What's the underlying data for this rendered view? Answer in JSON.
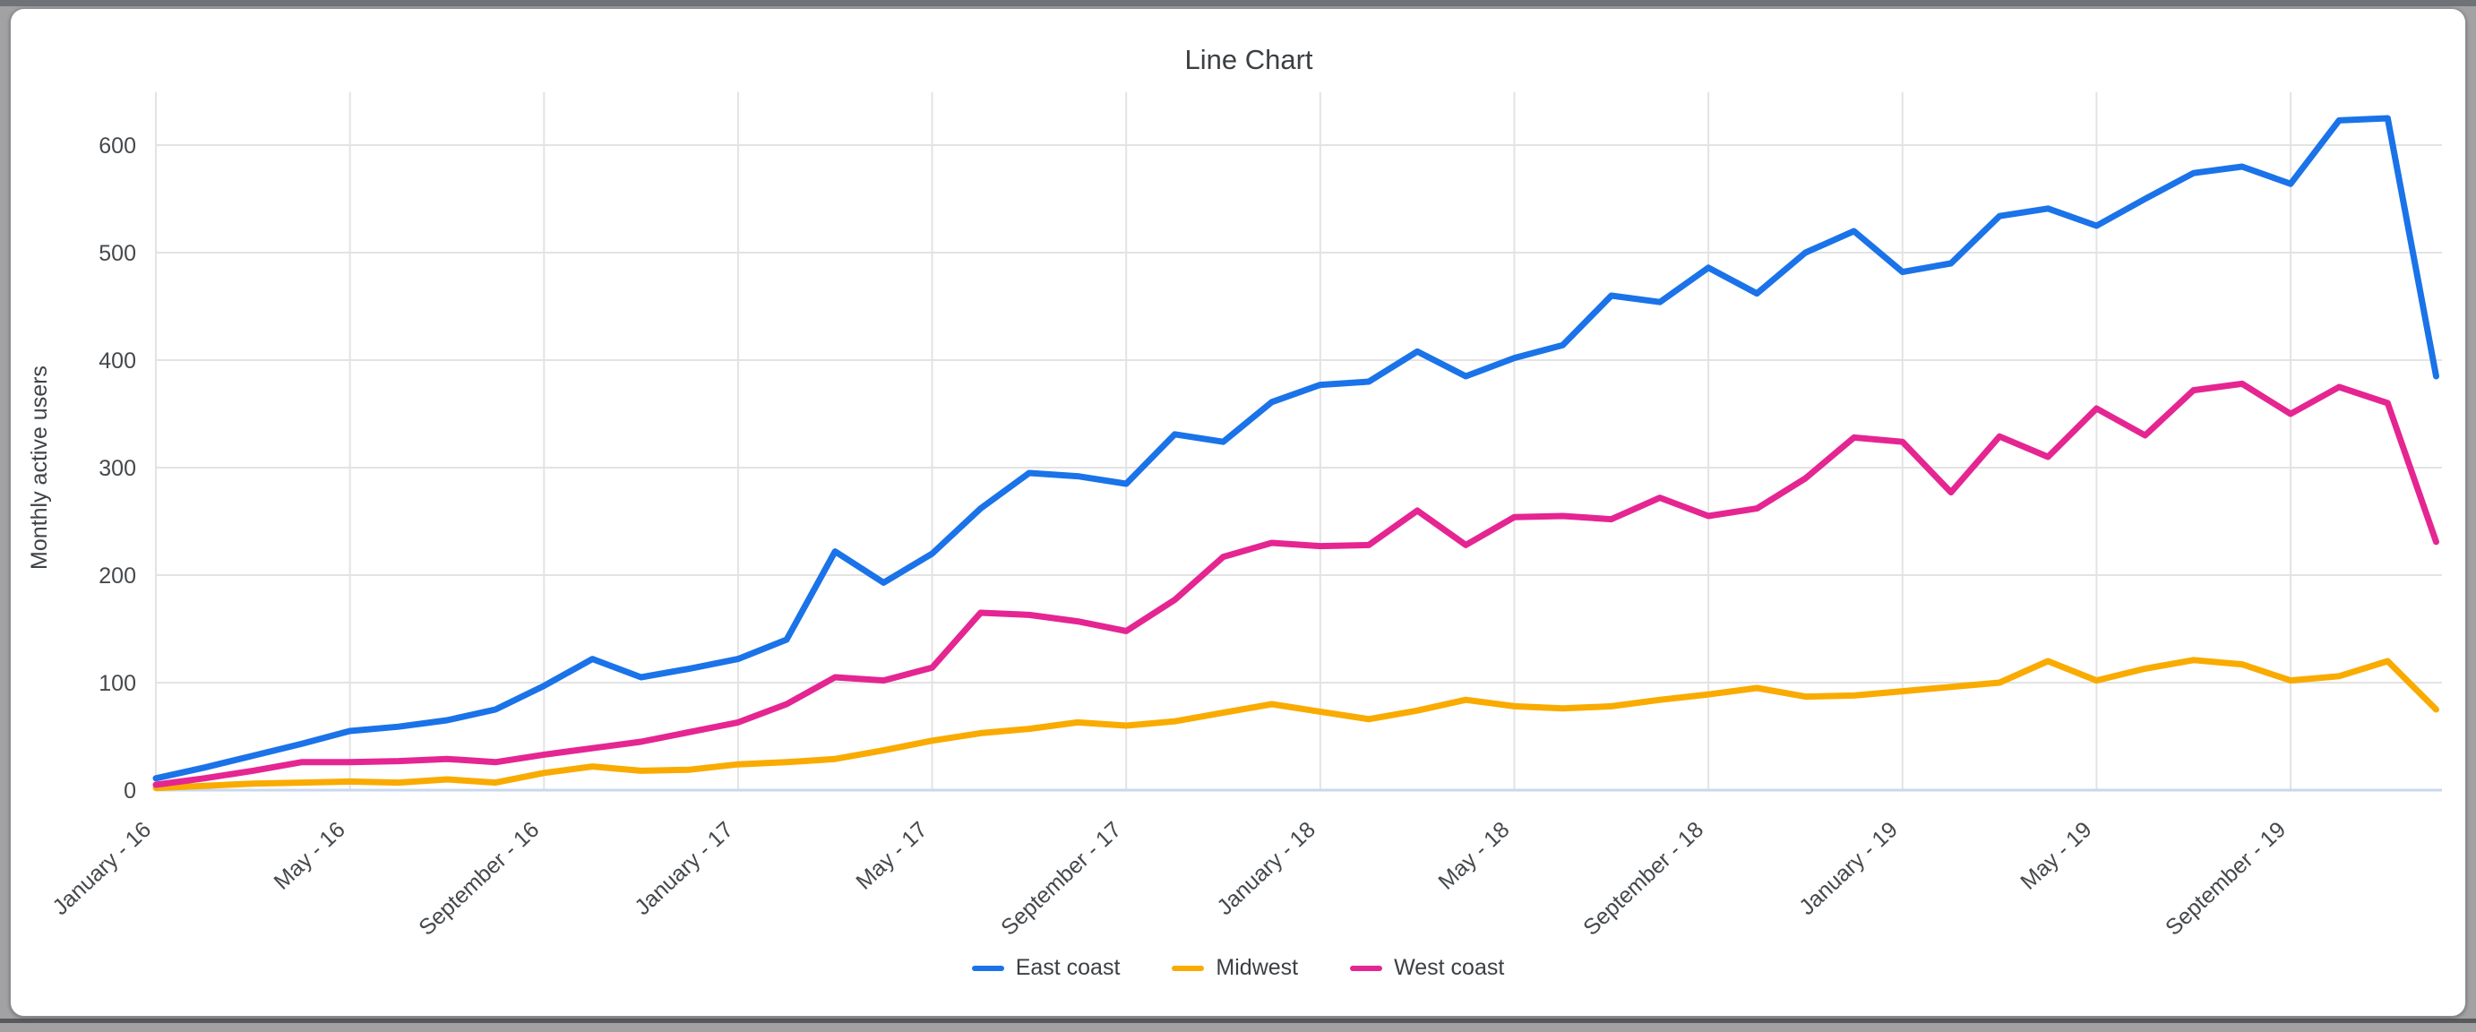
{
  "chart_data": {
    "type": "line",
    "title": "Line Chart",
    "xlabel": "",
    "ylabel": "Monthly active users",
    "ylim": [
      0,
      650
    ],
    "grid": true,
    "legend_position": "bottom",
    "y_tick_labels": [
      "0",
      "100",
      "200",
      "300",
      "400",
      "500",
      "600"
    ],
    "y_ticks": [
      0,
      100,
      200,
      300,
      400,
      500,
      600
    ],
    "x_tick_labels": [
      "January - 16",
      "May - 16",
      "September - 16",
      "January - 17",
      "May - 17",
      "September - 17",
      "January - 18",
      "May - 18",
      "September - 18",
      "January - 19",
      "May - 19",
      "September - 19"
    ],
    "x_tick_month_indices": [
      0,
      4,
      8,
      12,
      16,
      20,
      24,
      28,
      32,
      36,
      40,
      44
    ],
    "categories": [
      "Jan 2016",
      "Feb 2016",
      "Mar 2016",
      "Apr 2016",
      "May 2016",
      "Jun 2016",
      "Jul 2016",
      "Aug 2016",
      "Sep 2016",
      "Oct 2016",
      "Nov 2016",
      "Dec 2016",
      "Jan 2017",
      "Feb 2017",
      "Mar 2017",
      "Apr 2017",
      "May 2017",
      "Jun 2017",
      "Jul 2017",
      "Aug 2017",
      "Sep 2017",
      "Oct 2017",
      "Nov 2017",
      "Dec 2017",
      "Jan 2018",
      "Feb 2018",
      "Mar 2018",
      "Apr 2018",
      "May 2018",
      "Jun 2018",
      "Jul 2018",
      "Aug 2018",
      "Sep 2018",
      "Oct 2018",
      "Nov 2018",
      "Dec 2018",
      "Jan 2019",
      "Feb 2019",
      "Mar 2019",
      "Apr 2019",
      "May 2019",
      "Jun 2019",
      "Jul 2019",
      "Aug 2019",
      "Sep 2019",
      "Oct 2019",
      "Nov 2019",
      "Dec 2019"
    ],
    "series": [
      {
        "name": "East coast",
        "color": "#1a73e8",
        "values": [
          11,
          21,
          32,
          43,
          55,
          59,
          65,
          75,
          97,
          122,
          105,
          113,
          122,
          140,
          222,
          193,
          220,
          262,
          295,
          292,
          285,
          331,
          324,
          361,
          377,
          380,
          408,
          385,
          402,
          414,
          460,
          454,
          486,
          462,
          500,
          520,
          482,
          490,
          534,
          541,
          525,
          550,
          574,
          580,
          564,
          623,
          625,
          385
        ]
      },
      {
        "name": "Midwest",
        "color": "#f9ab00",
        "values": [
          2,
          4,
          6,
          7,
          8,
          7,
          10,
          7,
          16,
          22,
          18,
          19,
          24,
          26,
          29,
          37,
          46,
          53,
          57,
          63,
          60,
          64,
          72,
          80,
          73,
          66,
          74,
          84,
          78,
          76,
          78,
          84,
          89,
          95,
          87,
          88,
          92,
          96,
          100,
          120,
          102,
          113,
          121,
          117,
          102,
          106,
          120,
          75
        ]
      },
      {
        "name": "West coast",
        "color": "#e52592",
        "values": [
          5,
          11,
          18,
          26,
          26,
          27,
          29,
          26,
          33,
          39,
          45,
          54,
          63,
          80,
          105,
          102,
          114,
          165,
          163,
          157,
          148,
          177,
          217,
          230,
          227,
          228,
          260,
          228,
          254,
          255,
          252,
          272,
          255,
          262,
          290,
          328,
          324,
          277,
          329,
          310,
          355,
          330,
          372,
          378,
          350,
          375,
          360,
          231
        ]
      }
    ],
    "style": {
      "grid_color": "#e3e3e3",
      "baseline_color": "#c9d7f0",
      "title_color": "#3c4043",
      "tick_label_color": "#45494d",
      "axis_title_color": "#3f4347",
      "line_width": 7
    }
  }
}
